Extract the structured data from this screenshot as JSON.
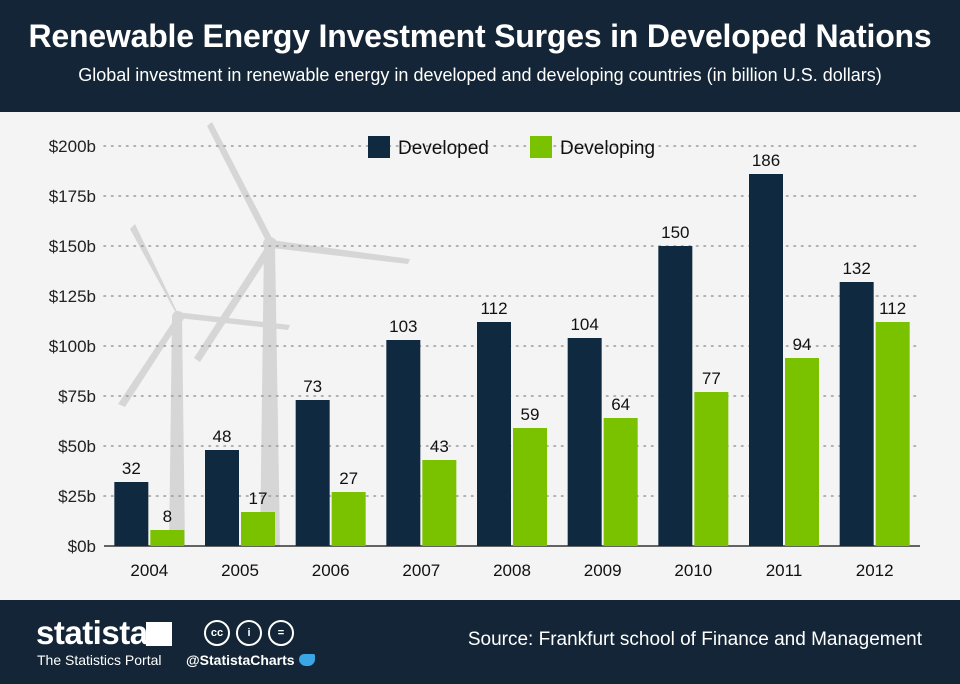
{
  "header": {
    "title": "Renewable Energy Investment Surges in Developed Nations",
    "subtitle": "Global investment in renewable energy in developed and developing countries (in billion U.S. dollars)"
  },
  "chart_data": {
    "type": "bar",
    "categories": [
      "2004",
      "2005",
      "2006",
      "2007",
      "2008",
      "2009",
      "2010",
      "2011",
      "2012"
    ],
    "series": [
      {
        "name": "Developed",
        "color": "#0f2a40",
        "values": [
          32,
          48,
          73,
          103,
          112,
          104,
          150,
          186,
          132
        ]
      },
      {
        "name": "Developing",
        "color": "#7ac200",
        "values": [
          8,
          17,
          27,
          43,
          59,
          64,
          77,
          94,
          112
        ]
      }
    ],
    "yticks": [
      "$0b",
      "$25b",
      "$50b",
      "$75b",
      "$100b",
      "$125b",
      "$150b",
      "$175b",
      "$200b"
    ],
    "ylim": [
      0,
      200
    ],
    "grid": true,
    "legend": "top-center"
  },
  "footer": {
    "logo": "statista",
    "tagline": "The Statistics Portal",
    "handle": "@StatistaCharts",
    "source": "Source: Frankfurt school of Finance and Management",
    "license_icons": [
      "cc-icon",
      "by-icon",
      "nd-icon"
    ]
  }
}
